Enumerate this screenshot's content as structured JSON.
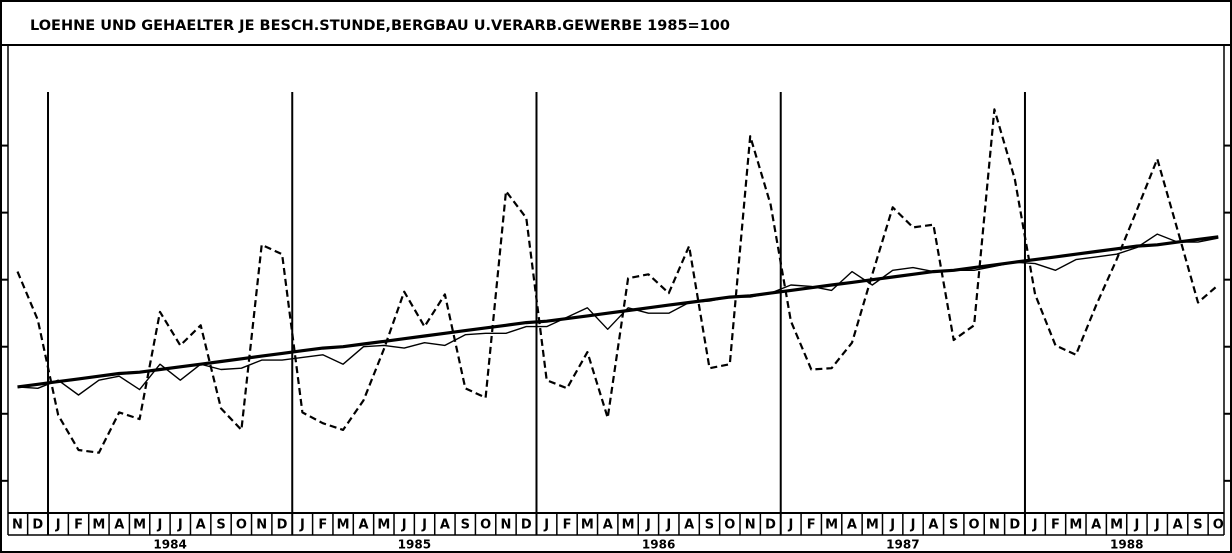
{
  "chart_data": {
    "type": "line",
    "title": "LOEHNE UND GEHAELTER JE BESCH.STUNDE,BERGBAU U.VERARB.GEWERBE 1985=100",
    "categories": [
      "N",
      "D",
      "J",
      "F",
      "M",
      "A",
      "M",
      "J",
      "J",
      "A",
      "S",
      "O",
      "N",
      "D",
      "J",
      "F",
      "M",
      "A",
      "M",
      "J",
      "J",
      "A",
      "S",
      "O",
      "N",
      "D",
      "J",
      "F",
      "M",
      "A",
      "M",
      "J",
      "J",
      "A",
      "S",
      "O",
      "N",
      "D",
      "J",
      "F",
      "M",
      "A",
      "M",
      "J",
      "J",
      "A",
      "S",
      "O",
      "N",
      "D",
      "J",
      "F",
      "M",
      "A",
      "M",
      "J",
      "J",
      "A",
      "S",
      "O"
    ],
    "years": [
      "1984",
      "1985",
      "1986",
      "1987",
      "1988"
    ],
    "ylim": [
      87.6,
      122.5
    ],
    "yticks": [
      90,
      95,
      100,
      105,
      110,
      115
    ],
    "series": [
      {
        "color": "#000000",
        "style": "dashed",
        "width": 2.2,
        "values": [
          105.6,
          102.0,
          94.9,
          92.3,
          92.1,
          95.1,
          94.6,
          102.6,
          100.1,
          101.6,
          95.4,
          93.8,
          107.6,
          106.9,
          95.1,
          94.3,
          93.8,
          96.0,
          99.8,
          104.1,
          101.5,
          103.9,
          96.9,
          96.2,
          111.6,
          109.6,
          97.5,
          96.9,
          99.6,
          94.7,
          105.1,
          105.4,
          104.0,
          107.5,
          98.4,
          98.7,
          115.7,
          110.6,
          101.9,
          98.3,
          98.4,
          100.3,
          105.4,
          110.4,
          108.9,
          109.1,
          100.5,
          101.6,
          117.7,
          112.5,
          103.9,
          100.1,
          99.4,
          103.1,
          106.5,
          110.2,
          114.0,
          108.7,
          103.3,
          104.6
        ]
      },
      {
        "color": "#000000",
        "style": "solid",
        "width": 1.4,
        "values": [
          97.0,
          96.9,
          97.5,
          96.4,
          97.5,
          97.8,
          96.8,
          98.7,
          97.5,
          98.7,
          98.3,
          98.4,
          99.0,
          99.0,
          99.2,
          99.4,
          98.7,
          100.0,
          100.1,
          99.9,
          100.3,
          100.1,
          100.9,
          101.0,
          101.0,
          101.5,
          101.5,
          102.2,
          102.9,
          101.3,
          102.9,
          102.5,
          102.5,
          103.3,
          103.4,
          103.7,
          103.7,
          104.0,
          104.6,
          104.5,
          104.2,
          105.6,
          104.6,
          105.7,
          105.9,
          105.6,
          105.7,
          105.7,
          106.0,
          106.3,
          106.2,
          105.7,
          106.5,
          106.7,
          106.9,
          107.4,
          108.4,
          107.8,
          107.8,
          108.1
        ]
      },
      {
        "color": "#000000",
        "style": "solid",
        "width": 3.2,
        "values": [
          97.0,
          97.2,
          97.4,
          97.6,
          97.8,
          98.0,
          98.1,
          98.3,
          98.5,
          98.7,
          98.9,
          99.1,
          99.3,
          99.5,
          99.7,
          99.9,
          100.0,
          100.2,
          100.4,
          100.6,
          100.8,
          101.0,
          101.2,
          101.4,
          101.6,
          101.8,
          101.9,
          102.1,
          102.3,
          102.5,
          102.7,
          102.9,
          103.1,
          103.3,
          103.5,
          103.7,
          103.8,
          104.0,
          104.2,
          104.4,
          104.6,
          104.8,
          105.0,
          105.2,
          105.4,
          105.6,
          105.7,
          105.9,
          106.1,
          106.3,
          106.5,
          106.7,
          106.9,
          107.1,
          107.3,
          107.5,
          107.6,
          107.8,
          108.0,
          108.2
        ]
      }
    ]
  }
}
